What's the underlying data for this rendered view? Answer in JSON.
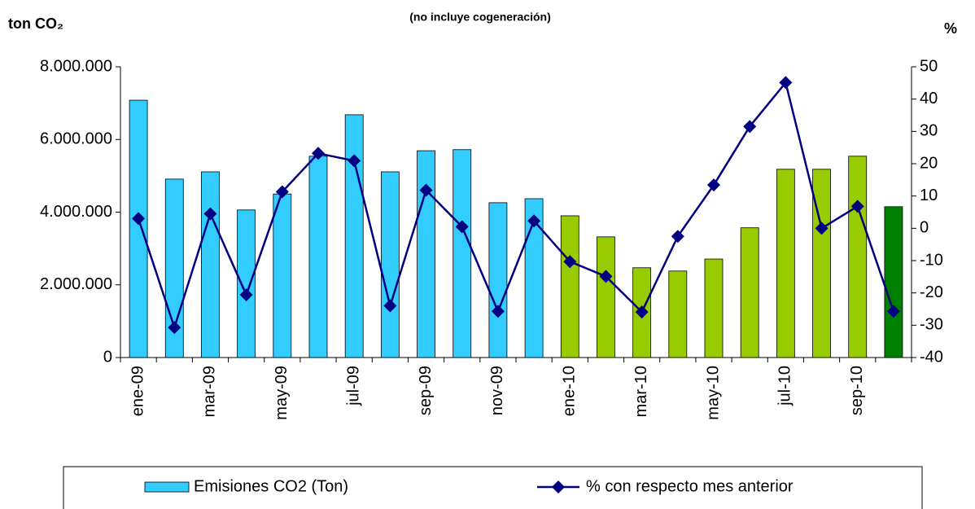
{
  "chart_data": {
    "type": "bar_line",
    "subtitle": "(no incluye cogeneración)",
    "y_label": "ton CO₂",
    "y2_label": "%",
    "categories": [
      "ene-09",
      null,
      "mar-09",
      null,
      "may-09",
      null,
      "jul-09",
      null,
      "sep-09",
      null,
      "nov-09",
      null,
      "ene-10",
      null,
      "mar-10",
      null,
      "may-10",
      null,
      "jul-10",
      null,
      "sep-10",
      null
    ],
    "series": [
      {
        "name": "Emisiones CO2 (Ton)",
        "kind": "bar",
        "color": "#33ccff",
        "colors": [
          "#33ccff",
          "#33ccff",
          "#33ccff",
          "#33ccff",
          "#33ccff",
          "#33ccff",
          "#33ccff",
          "#33ccff",
          "#33ccff",
          "#33ccff",
          "#33ccff",
          "#33ccff",
          "#99cc00",
          "#99cc00",
          "#99cc00",
          "#99cc00",
          "#99cc00",
          "#99cc00",
          "#99cc00",
          "#99cc00",
          "#99cc00",
          "#008000"
        ],
        "values": [
          7080000,
          4910000,
          5110000,
          4060000,
          4500000,
          5540000,
          6680000,
          5110000,
          5690000,
          5720000,
          4260000,
          4370000,
          3900000,
          3320000,
          2470000,
          2380000,
          2710000,
          3570000,
          5180000,
          5180000,
          5540000,
          4150000
        ]
      },
      {
        "name": "% con respecto mes anterior",
        "kind": "line",
        "axis": "y2",
        "color": "#000080",
        "values": [
          3,
          -30.7,
          4.5,
          -20.6,
          11.3,
          23.2,
          20.9,
          -24,
          11.8,
          0.5,
          -25.7,
          2.3,
          -10.3,
          -14.9,
          -25.9,
          -2.5,
          13.4,
          31.5,
          45.1,
          0,
          6.8,
          -25.7
        ]
      }
    ],
    "ylim": [
      0,
      8000000
    ],
    "yticks": [
      0,
      {
        "value": 2000000,
        "label": "2.000.000"
      },
      {
        "value": 4000000,
        "label": "4.000.000"
      },
      {
        "value": 6000000,
        "label": "6.000.000"
      },
      {
        "value": 8000000,
        "label": "8.000.000"
      }
    ],
    "y2lim": [
      -40,
      50
    ],
    "y2ticks": [
      -40,
      -30,
      -20,
      -10,
      0,
      10,
      20,
      30,
      40,
      50
    ],
    "legend": "bottom"
  }
}
